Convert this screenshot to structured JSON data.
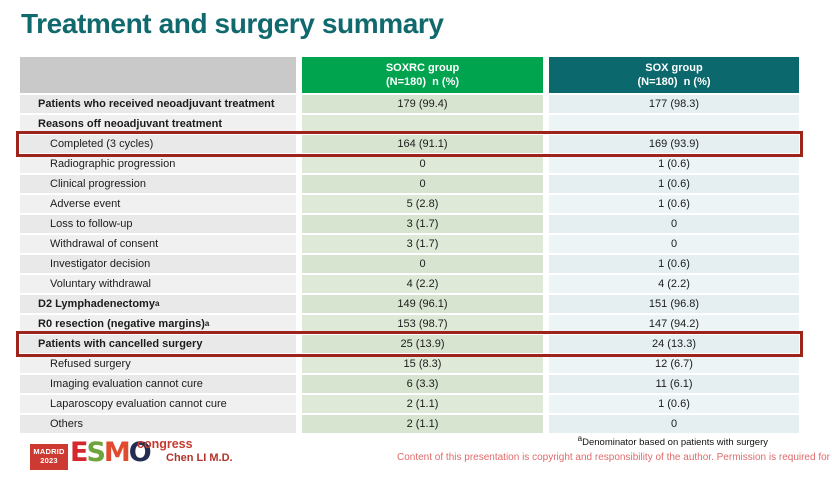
{
  "slide": {
    "title": "Treatment and surgery summary",
    "table": {
      "header": {
        "soxrc": {
          "line1": "SOXRC group",
          "line2": "(N=180)  n (%)"
        },
        "sox": {
          "line1": "SOX group",
          "line2": "(N=180)  n (%)"
        }
      },
      "rows": [
        {
          "label": "Patients who received neoadjuvant treatment",
          "sup": "",
          "bold": true,
          "indent": false,
          "soxrc": "179 (99.4)",
          "sox": "177 (98.3)",
          "highlight": false
        },
        {
          "label": "Reasons off neoadjuvant treatment",
          "sup": "",
          "bold": true,
          "indent": false,
          "soxrc": "",
          "sox": "",
          "highlight": false
        },
        {
          "label": "Completed (3 cycles)",
          "sup": "",
          "bold": false,
          "indent": true,
          "soxrc": "164 (91.1)",
          "sox": "169 (93.9)",
          "highlight": true
        },
        {
          "label": "Radiographic progression",
          "sup": "",
          "bold": false,
          "indent": true,
          "soxrc": "0",
          "sox": "1 (0.6)",
          "highlight": false
        },
        {
          "label": "Clinical progression",
          "sup": "",
          "bold": false,
          "indent": true,
          "soxrc": "0",
          "sox": "1 (0.6)",
          "highlight": false
        },
        {
          "label": "Adverse event",
          "sup": "",
          "bold": false,
          "indent": true,
          "soxrc": "5 (2.8)",
          "sox": "1 (0.6)",
          "highlight": false
        },
        {
          "label": "Loss to follow-up",
          "sup": "",
          "bold": false,
          "indent": true,
          "soxrc": "3 (1.7)",
          "sox": "0",
          "highlight": false
        },
        {
          "label": "Withdrawal of consent",
          "sup": "",
          "bold": false,
          "indent": true,
          "soxrc": "3 (1.7)",
          "sox": "0",
          "highlight": false
        },
        {
          "label": "Investigator decision",
          "sup": "",
          "bold": false,
          "indent": true,
          "soxrc": "0",
          "sox": "1 (0.6)",
          "highlight": false
        },
        {
          "label": "Voluntary withdrawal",
          "sup": "",
          "bold": false,
          "indent": true,
          "soxrc": "4 (2.2)",
          "sox": "4 (2.2)",
          "highlight": false
        },
        {
          "label": "D2 Lymphadenectomy",
          "sup": "a",
          "bold": true,
          "indent": false,
          "soxrc": "149 (96.1)",
          "sox": "151 (96.8)",
          "highlight": false
        },
        {
          "label": "R0 resection (negative margins)",
          "sup": "a",
          "bold": true,
          "indent": false,
          "soxrc": "153 (98.7)",
          "sox": "147 (94.2)",
          "highlight": false
        },
        {
          "label": "Patients with cancelled surgery",
          "sup": "",
          "bold": true,
          "indent": false,
          "soxrc": "25 (13.9)",
          "sox": "24 (13.3)",
          "highlight": true
        },
        {
          "label": "Refused surgery",
          "sup": "",
          "bold": false,
          "indent": true,
          "soxrc": "15 (8.3)",
          "sox": "12 (6.7)",
          "highlight": false
        },
        {
          "label": "Imaging evaluation cannot cure",
          "sup": "",
          "bold": false,
          "indent": true,
          "soxrc": "6 (3.3)",
          "sox": "11 (6.1)",
          "highlight": false
        },
        {
          "label": "Laparoscopy evaluation cannot cure",
          "sup": "",
          "bold": false,
          "indent": true,
          "soxrc": "2 (1.1)",
          "sox": "1 (0.6)",
          "highlight": false
        },
        {
          "label": "Others",
          "sup": "",
          "bold": false,
          "indent": true,
          "soxrc": "2 (1.1)",
          "sox": "0",
          "highlight": false
        }
      ]
    },
    "footnote": {
      "sup": "a",
      "text": "Denominator based on patients with surgery"
    },
    "copyright": "Content of this presentation is copyright and responsibility of the author. Permission is required for re-use.",
    "presenter": "Chen LI M.D.",
    "logo": {
      "badge_line1": "MADRID",
      "badge_line2": "2023",
      "letters": [
        "E",
        "S",
        "M",
        "O"
      ],
      "congress": "congress"
    },
    "colors": {
      "title_teal": "#10696d",
      "header_green": "#00a44f",
      "header_teal": "#0b686d",
      "soxrc_cell_green": "#d7e4d0",
      "sox_cell_blue": "#e5eff1",
      "label_cell_gray": "#e9e9e9",
      "header_gray": "#c9c9c9",
      "highlight_red": "#9c241d",
      "copyright_red": "#df6b6c",
      "presenter_red": "#b2332a"
    }
  }
}
